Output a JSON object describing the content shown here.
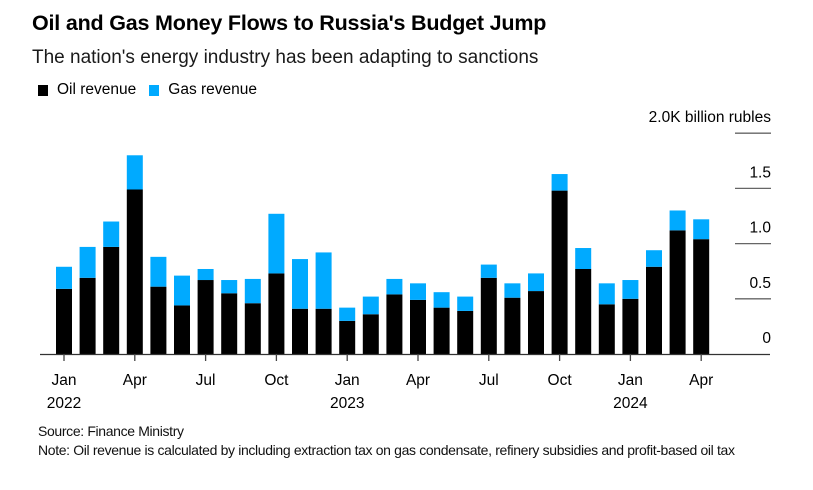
{
  "chart_data": {
    "type": "bar",
    "stacked": true,
    "title": "Oil and Gas Money Flows to Russia's Budget Jump",
    "subtitle": "The nation's energy industry has been adapting to sanctions",
    "xlabel": "",
    "ylabel": "billion rubles",
    "y_unit_label": "2.0K billion rubles",
    "ylim": [
      0,
      2.0
    ],
    "y_ticks": [
      0,
      0.5,
      1.0,
      1.5,
      2.0
    ],
    "y_tick_labels": [
      "0",
      "0.5",
      "1.0",
      "1.5",
      "2.0K billion rubles"
    ],
    "grid": false,
    "legend_position": "top-left",
    "categories": [
      "2022-01",
      "2022-02",
      "2022-03",
      "2022-04",
      "2022-05",
      "2022-06",
      "2022-07",
      "2022-08",
      "2022-09",
      "2022-10",
      "2022-11",
      "2022-12",
      "2023-01",
      "2023-02",
      "2023-03",
      "2023-04",
      "2023-05",
      "2023-06",
      "2023-07",
      "2023-08",
      "2023-09",
      "2023-10",
      "2023-11",
      "2023-12",
      "2024-01",
      "2024-02",
      "2024-03",
      "2024-04"
    ],
    "x_ticks": [
      {
        "index": 0,
        "label": "Jan",
        "year": "2022"
      },
      {
        "index": 3,
        "label": "Apr",
        "year": ""
      },
      {
        "index": 6,
        "label": "Jul",
        "year": ""
      },
      {
        "index": 9,
        "label": "Oct",
        "year": ""
      },
      {
        "index": 12,
        "label": "Jan",
        "year": "2023"
      },
      {
        "index": 15,
        "label": "Apr",
        "year": ""
      },
      {
        "index": 18,
        "label": "Jul",
        "year": ""
      },
      {
        "index": 21,
        "label": "Oct",
        "year": ""
      },
      {
        "index": 24,
        "label": "Jan",
        "year": "2024"
      },
      {
        "index": 27,
        "label": "Apr",
        "year": ""
      }
    ],
    "series": [
      {
        "name": "Oil revenue",
        "color": "#000000",
        "values": [
          0.59,
          0.69,
          0.97,
          1.49,
          0.61,
          0.44,
          0.67,
          0.55,
          0.46,
          0.73,
          0.41,
          0.41,
          0.3,
          0.36,
          0.54,
          0.49,
          0.42,
          0.39,
          0.69,
          0.51,
          0.57,
          1.48,
          0.77,
          0.45,
          0.5,
          0.79,
          1.12,
          1.04
        ]
      },
      {
        "name": "Gas revenue",
        "color": "#00AAFF",
        "values": [
          0.2,
          0.28,
          0.23,
          0.31,
          0.27,
          0.27,
          0.1,
          0.12,
          0.22,
          0.54,
          0.45,
          0.51,
          0.12,
          0.16,
          0.14,
          0.15,
          0.14,
          0.13,
          0.12,
          0.13,
          0.16,
          0.15,
          0.19,
          0.19,
          0.17,
          0.15,
          0.18,
          0.18
        ]
      }
    ]
  },
  "header": {
    "title": "Oil and Gas Money Flows to Russia's Budget Jump",
    "subtitle": "The nation's energy industry has been adapting to sanctions"
  },
  "legend": [
    {
      "label": "Oil revenue",
      "color": "#000000"
    },
    {
      "label": "Gas revenue",
      "color": "#00AAFF"
    }
  ],
  "footer": {
    "source": "Source: Finance Ministry",
    "note": "Note: Oil revenue is calculated by including extraction tax on gas condensate, refinery subsidies and profit-based oil tax"
  }
}
